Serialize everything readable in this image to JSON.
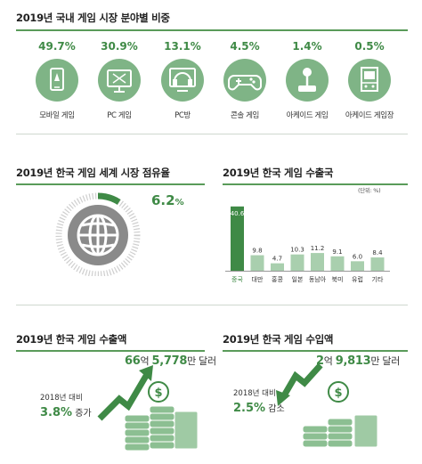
{
  "sections": {
    "market_share": {
      "title": "2019년 국내 게임 시장 분야별 비중"
    },
    "world_share": {
      "title": "2019년 한국 게임 세계 시장 점유율",
      "value": "6.2",
      "unit": "%"
    },
    "export_countries": {
      "title": "2019년 한국 게임 수출국",
      "unit_label": "(단위: %)"
    },
    "exports": {
      "title": "2019년 한국 게임 수출액",
      "amount_a_num": "66",
      "amount_a_unit": "억 ",
      "amount_b_num": "5,778",
      "amount_b_unit": "만 달러",
      "compare_label": "2018년 대비",
      "compare_value": "3.8%",
      "compare_word": " 증가"
    },
    "imports": {
      "title": "2019년 한국 게임 수입액",
      "amount_a_num": "2",
      "amount_a_unit": "억 ",
      "amount_b_num": "9,813",
      "amount_b_unit": "만 달러",
      "compare_label": "2018년 대비",
      "compare_value": "2.5%",
      "compare_word": " 감소"
    }
  },
  "segments": [
    {
      "pct": "49.7%",
      "label": "모바일 게임",
      "icon": "mobile-icon"
    },
    {
      "pct": "30.9%",
      "label": "PC 게임",
      "icon": "monitor-icon"
    },
    {
      "pct": "13.1%",
      "label": "PC방",
      "icon": "headset-icon"
    },
    {
      "pct": "4.5%",
      "label": "콘솔 게임",
      "icon": "gamepad-icon"
    },
    {
      "pct": "1.4%",
      "label": "아케이드 게임",
      "icon": "joystick-icon"
    },
    {
      "pct": "0.5%",
      "label": "아케이드 게임장",
      "icon": "arcade-cabinet-icon"
    }
  ],
  "colors": {
    "accent": "#3f8a46",
    "circle": "#7fb486",
    "bar_main": "#3f8a46",
    "bar_other": "#a9cfae"
  },
  "chart_data": [
    {
      "type": "pie",
      "title": "2019년 국내 게임 시장 분야별 비중",
      "categories": [
        "모바일 게임",
        "PC 게임",
        "PC방",
        "콘솔 게임",
        "아케이드 게임",
        "아케이드 게임장"
      ],
      "values": [
        49.7,
        30.9,
        13.1,
        4.5,
        1.4,
        0.5
      ]
    },
    {
      "type": "bar",
      "title": "2019년 한국 게임 수출국",
      "categories": [
        "중국",
        "대만",
        "홍콩",
        "일본",
        "동남아",
        "북미",
        "유럽",
        "기타"
      ],
      "values": [
        40.6,
        9.8,
        4.7,
        10.3,
        11.2,
        9.1,
        6.0,
        8.4
      ],
      "value_labels": [
        "40.6",
        "9.8",
        "4.7",
        "10.3",
        "11.2",
        "9.1",
        "6.0",
        "8.4"
      ],
      "ylim": [
        0,
        45
      ]
    }
  ]
}
